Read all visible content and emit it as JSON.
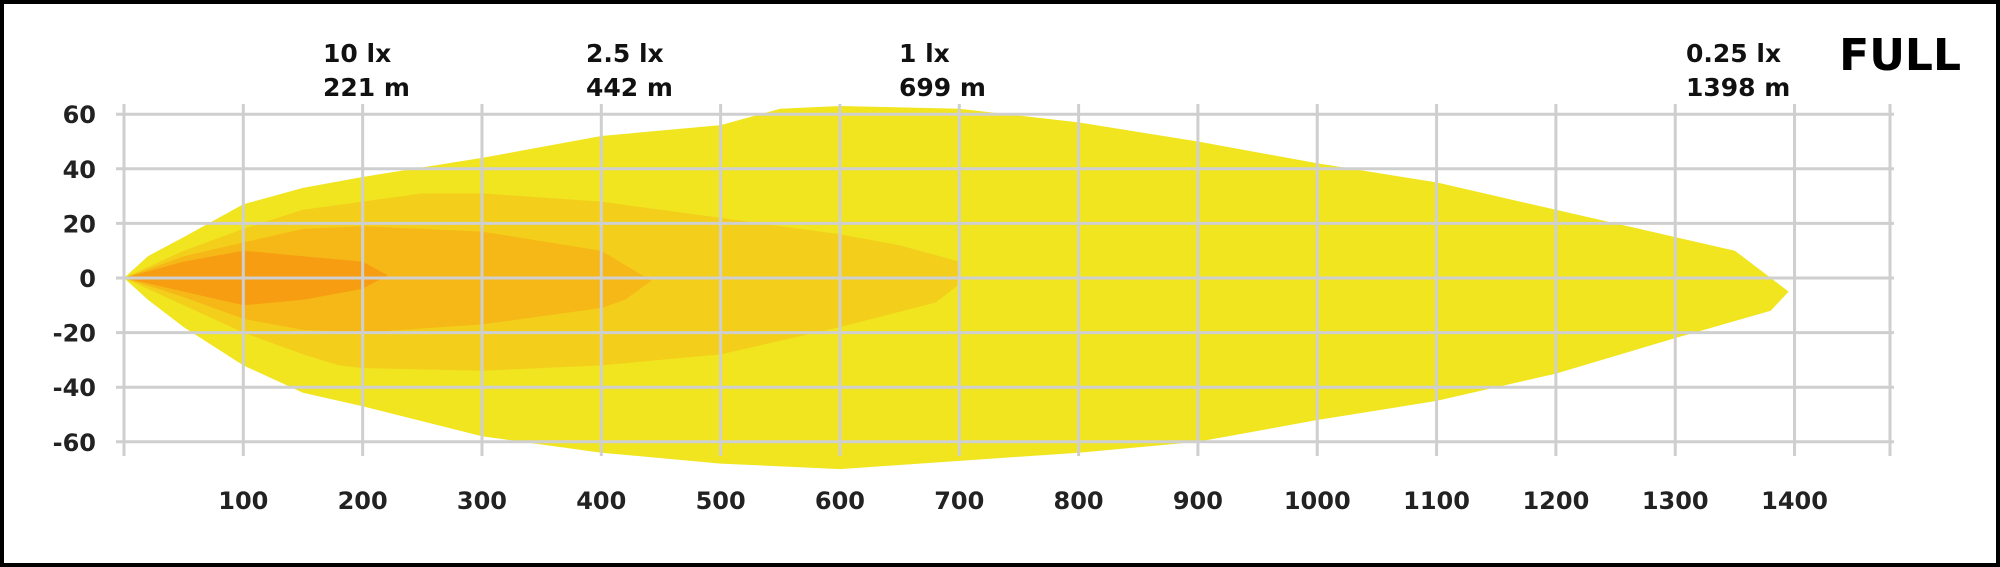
{
  "chart_data": {
    "type": "area",
    "title": "FULL",
    "xlabel": "",
    "ylabel": "",
    "xlim": [
      0,
      1480
    ],
    "ylim": [
      -70,
      70
    ],
    "x_ticks": [
      100,
      200,
      300,
      400,
      500,
      600,
      700,
      800,
      900,
      1000,
      1100,
      1200,
      1300,
      1400
    ],
    "y_ticks": [
      60,
      40,
      20,
      0,
      -20,
      -40,
      -60
    ],
    "grid": true,
    "annotations": [
      {
        "lux": "10 lx",
        "distance": "221 m",
        "x": 221
      },
      {
        "lux": "2.5 lx",
        "distance": "442 m",
        "x": 442
      },
      {
        "lux": "1 lx",
        "distance": "699 m",
        "x": 699
      },
      {
        "lux": "0.25 lx",
        "distance": "1398 m",
        "x": 1398
      }
    ],
    "series": [
      {
        "level": "0.25 lx",
        "color": "#f0e51f",
        "points": [
          [
            0,
            0
          ],
          [
            20,
            8
          ],
          [
            50,
            15
          ],
          [
            100,
            27
          ],
          [
            150,
            33
          ],
          [
            200,
            37
          ],
          [
            300,
            44
          ],
          [
            400,
            52
          ],
          [
            500,
            56
          ],
          [
            550,
            62
          ],
          [
            600,
            63
          ],
          [
            700,
            62
          ],
          [
            800,
            57
          ],
          [
            900,
            50
          ],
          [
            1000,
            42
          ],
          [
            1100,
            35
          ],
          [
            1200,
            25
          ],
          [
            1300,
            15
          ],
          [
            1350,
            10
          ],
          [
            1395,
            -5
          ],
          [
            1380,
            -12
          ],
          [
            1300,
            -22
          ],
          [
            1200,
            -35
          ],
          [
            1100,
            -45
          ],
          [
            1000,
            -52
          ],
          [
            900,
            -60
          ],
          [
            800,
            -64
          ],
          [
            700,
            -67
          ],
          [
            600,
            -70
          ],
          [
            500,
            -68
          ],
          [
            400,
            -64
          ],
          [
            300,
            -58
          ],
          [
            200,
            -47
          ],
          [
            150,
            -42
          ],
          [
            100,
            -32
          ],
          [
            50,
            -18
          ],
          [
            20,
            -8
          ],
          [
            0,
            0
          ]
        ]
      },
      {
        "level": "1 lx",
        "color": "#f3cf1c",
        "points": [
          [
            0,
            0
          ],
          [
            50,
            10
          ],
          [
            100,
            18
          ],
          [
            150,
            25
          ],
          [
            200,
            28
          ],
          [
            250,
            31
          ],
          [
            300,
            31
          ],
          [
            400,
            28
          ],
          [
            500,
            22
          ],
          [
            600,
            16
          ],
          [
            650,
            12
          ],
          [
            700,
            6
          ],
          [
            698,
            -3
          ],
          [
            680,
            -9
          ],
          [
            600,
            -18
          ],
          [
            500,
            -28
          ],
          [
            400,
            -32
          ],
          [
            300,
            -34
          ],
          [
            200,
            -33
          ],
          [
            180,
            -32
          ],
          [
            150,
            -28
          ],
          [
            100,
            -20
          ],
          [
            50,
            -10
          ],
          [
            0,
            0
          ]
        ]
      },
      {
        "level": "2.5 lx",
        "color": "#f6b817",
        "points": [
          [
            0,
            0
          ],
          [
            50,
            8
          ],
          [
            100,
            13
          ],
          [
            150,
            18
          ],
          [
            200,
            19
          ],
          [
            300,
            17
          ],
          [
            400,
            10
          ],
          [
            442,
            -1
          ],
          [
            420,
            -8
          ],
          [
            400,
            -11
          ],
          [
            300,
            -17
          ],
          [
            200,
            -20
          ],
          [
            150,
            -19
          ],
          [
            100,
            -15
          ],
          [
            50,
            -7
          ],
          [
            0,
            0
          ]
        ]
      },
      {
        "level": "10 lx",
        "color": "#f79d11",
        "points": [
          [
            0,
            0
          ],
          [
            50,
            6
          ],
          [
            100,
            10
          ],
          [
            150,
            8
          ],
          [
            200,
            6
          ],
          [
            221,
            1
          ],
          [
            200,
            -4
          ],
          [
            150,
            -8
          ],
          [
            100,
            -10
          ],
          [
            50,
            -5
          ],
          [
            0,
            0
          ]
        ]
      }
    ]
  }
}
